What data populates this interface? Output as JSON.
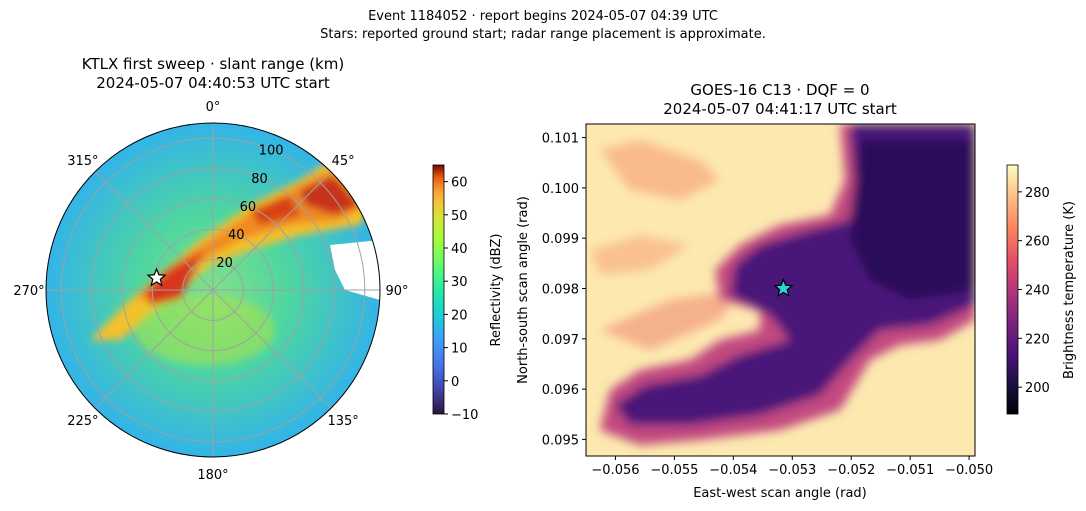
{
  "figure": {
    "title_line1": "Event 1184052 · report begins 2024-05-07 04:39 UTC",
    "title_line2": "Stars: reported ground start; radar range placement is approximate."
  },
  "radar_panel": {
    "title_line1": "KTLX first sweep · slant range (km)",
    "title_line2": "2024-05-07 04:40:53 UTC start",
    "colorbar_label": "Reflectivity (dBZ)"
  },
  "goes_panel": {
    "title_line1": "GOES-16 C13 · DQF = 0",
    "title_line2": "2024-05-07 04:41:17 UTC start",
    "colorbar_label": "Brightness temperature (K)"
  },
  "colors": {
    "star_radar": "#ffffff",
    "star_goes": "#2ad3d8",
    "grid": "#a0a0a0"
  },
  "chart_data": [
    {
      "type": "heatmap",
      "projection": "polar",
      "title": "KTLX first sweep · slant range (km)\n2024-05-07 04:40:53 UTC start",
      "theta_tick_labels": [
        "0°",
        "45°",
        "90°",
        "135°",
        "180°",
        "225°",
        "270°",
        "315°"
      ],
      "radial_tick_labels": [
        "20",
        "40",
        "60",
        "80",
        "100"
      ],
      "radial_ticks": [
        20,
        40,
        60,
        80,
        100
      ],
      "rlim": [
        0,
        110
      ],
      "grid": true,
      "colormap": "turbo",
      "colorbar": {
        "label": "Reflectivity (dBZ)",
        "range": [
          -10,
          65
        ],
        "ticks": [
          -10,
          0,
          10,
          20,
          30,
          40,
          50,
          60
        ]
      },
      "star": {
        "azimuth_deg": 282,
        "range_km": 38,
        "label": "reported ground start"
      }
    },
    {
      "type": "heatmap",
      "title": "GOES-16 C13 · DQF = 0\n2024-05-07 04:41:17 UTC start",
      "xlabel": "East-west scan angle (rad)",
      "ylabel": "North-south scan angle (rad)",
      "x_ticks": [
        -0.056,
        -0.055,
        -0.054,
        -0.053,
        -0.052,
        -0.051,
        -0.05
      ],
      "x_tick_labels": [
        "−0.056",
        "−0.055",
        "−0.054",
        "−0.053",
        "−0.052",
        "−0.051",
        "−0.050"
      ],
      "y_ticks": [
        0.095,
        0.096,
        0.097,
        0.098,
        0.099,
        0.1,
        0.101
      ],
      "y_tick_labels": [
        "0.095",
        "0.096",
        "0.097",
        "0.098",
        "0.099",
        "0.100",
        "0.101"
      ],
      "xlim": [
        -0.0565,
        -0.0499
      ],
      "ylim": [
        0.09467,
        0.10127
      ],
      "colormap": "magma",
      "colorbar": {
        "label": "Brightness temperature (K)",
        "range": [
          189,
          291
        ],
        "ticks": [
          200,
          220,
          240,
          260,
          280
        ]
      },
      "star": {
        "x": -0.05315,
        "y": 0.098,
        "label": "reported ground start"
      }
    }
  ]
}
